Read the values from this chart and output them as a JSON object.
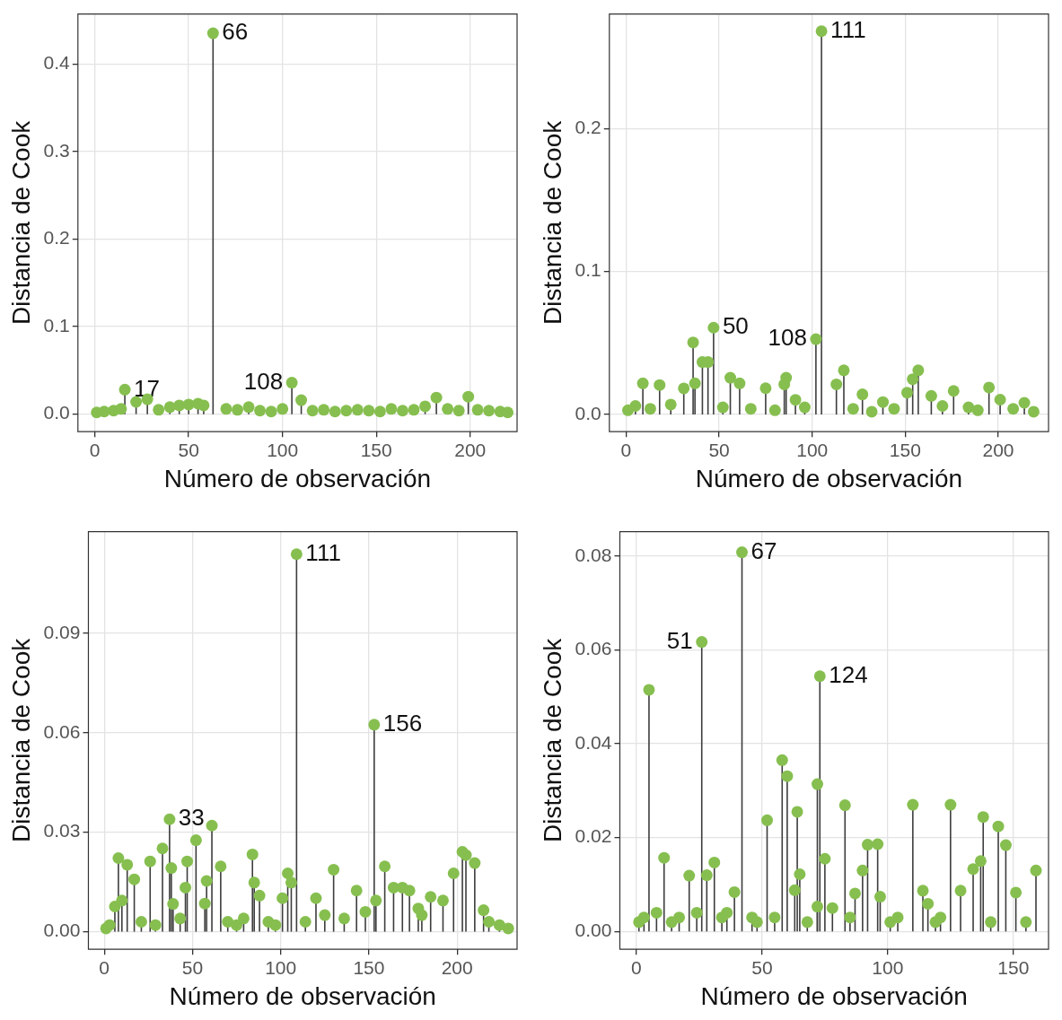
{
  "chart_data": [
    {
      "type": "lollipop",
      "xlabel": "Número de observación",
      "ylabel": "Distancia de Cook",
      "color": "#86bf4f",
      "grid": true,
      "marker": "circle",
      "xlim": [
        -9,
        225
      ],
      "ylim": [
        -0.02,
        0.457
      ],
      "xticks": [
        0,
        50,
        100,
        150,
        200
      ],
      "yticks": [
        {
          "value": 0,
          "label": "0.0"
        },
        {
          "value": 0.1,
          "label": "0.1"
        },
        {
          "value": 0.2,
          "label": "0.2"
        },
        {
          "value": 0.3,
          "label": "0.3"
        },
        {
          "value": 0.4,
          "label": "0.4"
        }
      ],
      "x": [
        63,
        16,
        22,
        28,
        105,
        110,
        182,
        199,
        1,
        5,
        10,
        14,
        34,
        40,
        45,
        50,
        55,
        58,
        70,
        76,
        82,
        88,
        94,
        100,
        116,
        122,
        128,
        134,
        140,
        146,
        152,
        158,
        164,
        170,
        176,
        188,
        194,
        204,
        210,
        216,
        220
      ],
      "values": [
        0.435,
        0.028,
        0.014,
        0.017,
        0.036,
        0.016,
        0.019,
        0.02,
        0.002,
        0.003,
        0.004,
        0.006,
        0.005,
        0.008,
        0.01,
        0.011,
        0.012,
        0.01,
        0.006,
        0.005,
        0.008,
        0.004,
        0.003,
        0.006,
        0.004,
        0.005,
        0.003,
        0.004,
        0.005,
        0.004,
        0.003,
        0.006,
        0.004,
        0.005,
        0.009,
        0.006,
        0.004,
        0.005,
        0.004,
        0.003,
        0.002
      ],
      "annotations": [
        {
          "text": "66",
          "x": 63,
          "y": 0.435
        },
        {
          "text": "17",
          "x": 16,
          "y": 0.028
        },
        {
          "text": "108",
          "x": 105,
          "y": 0.036
        }
      ]
    },
    {
      "type": "lollipop",
      "xlabel": "Número de observación",
      "ylabel": "Distancia de Cook",
      "color": "#86bf4f",
      "grid": true,
      "marker": "circle",
      "xlim": [
        -9,
        227
      ],
      "ylim": [
        -0.012,
        0.28
      ],
      "xticks": [
        0,
        50,
        100,
        150,
        200
      ],
      "yticks": [
        {
          "value": 0,
          "label": "0.0"
        },
        {
          "value": 0.1,
          "label": "0.1"
        },
        {
          "value": 0.2,
          "label": "0.2"
        }
      ],
      "x": [
        9,
        18,
        31,
        36,
        37,
        41,
        44,
        47,
        56,
        61,
        75,
        86,
        85,
        91,
        102,
        105,
        113,
        117,
        127,
        138,
        151,
        154,
        157,
        164,
        176,
        195,
        201,
        214,
        1,
        5,
        13,
        24,
        52,
        67,
        80,
        96,
        122,
        132,
        144,
        170,
        184,
        189,
        208,
        219
      ],
      "values": [
        0.0218,
        0.0206,
        0.0183,
        0.0504,
        0.0218,
        0.0367,
        0.0367,
        0.0607,
        0.0257,
        0.0218,
        0.0184,
        0.0257,
        0.0211,
        0.0103,
        0.0527,
        0.268,
        0.0211,
        0.0309,
        0.0141,
        0.0087,
        0.0153,
        0.0247,
        0.0309,
        0.013,
        0.0165,
        0.0189,
        0.0104,
        0.0082,
        0.003,
        0.006,
        0.004,
        0.007,
        0.005,
        0.004,
        0.003,
        0.005,
        0.004,
        0.002,
        0.004,
        0.006,
        0.005,
        0.003,
        0.004,
        0.002
      ],
      "annotations": [
        {
          "text": "111",
          "x": 105,
          "y": 0.268
        },
        {
          "text": "50",
          "x": 47,
          "y": 0.0607
        },
        {
          "text": "108",
          "x": 102,
          "y": 0.0527
        }
      ]
    },
    {
      "type": "lollipop",
      "xlabel": "Número de observación",
      "ylabel": "Distancia de Cook",
      "color": "#86bf4f",
      "grid": true,
      "marker": "circle",
      "xlim": [
        -9,
        234
      ],
      "ylim": [
        -0.0053,
        0.1206
      ],
      "xticks": [
        0,
        50,
        100,
        150,
        200
      ],
      "yticks": [
        {
          "value": 0,
          "label": "0.00"
        },
        {
          "value": 0.03,
          "label": "0.03"
        },
        {
          "value": 0.06,
          "label": "0.06"
        },
        {
          "value": 0.09,
          "label": "0.09"
        }
      ],
      "x": [
        8,
        13,
        17,
        6,
        10,
        26,
        33,
        37,
        38,
        39,
        47,
        46,
        52,
        58,
        61,
        66,
        57,
        84,
        85,
        88,
        104,
        101,
        106,
        109,
        120,
        130,
        143,
        153,
        154,
        159,
        164,
        169,
        173,
        185,
        192,
        198,
        203,
        205,
        210,
        215,
        1,
        3,
        21,
        29,
        43,
        70,
        75,
        79,
        93,
        97,
        114,
        125,
        136,
        148,
        178,
        180,
        218,
        224,
        229
      ],
      "values": [
        0.0222,
        0.0202,
        0.0158,
        0.0076,
        0.0094,
        0.0212,
        0.0251,
        0.0339,
        0.0192,
        0.0084,
        0.0212,
        0.0133,
        0.0276,
        0.0153,
        0.032,
        0.0197,
        0.0085,
        0.0233,
        0.0148,
        0.0109,
        0.0176,
        0.0101,
        0.0148,
        0.1138,
        0.0101,
        0.0187,
        0.0124,
        0.0624,
        0.0094,
        0.0197,
        0.0133,
        0.0133,
        0.0124,
        0.0105,
        0.0094,
        0.0176,
        0.0241,
        0.0231,
        0.0207,
        0.0065,
        0.001,
        0.002,
        0.003,
        0.002,
        0.004,
        0.003,
        0.002,
        0.004,
        0.003,
        0.002,
        0.003,
        0.005,
        0.004,
        0.006,
        0.007,
        0.005,
        0.003,
        0.002,
        0.001
      ],
      "annotations": [
        {
          "text": "111",
          "x": 109,
          "y": 0.1138
        },
        {
          "text": "156",
          "x": 153,
          "y": 0.0624
        },
        {
          "text": "33",
          "x": 37,
          "y": 0.0339
        }
      ]
    },
    {
      "type": "lollipop",
      "xlabel": "Número de observación",
      "ylabel": "Distancia de Cook",
      "color": "#86bf4f",
      "grid": true,
      "marker": "circle",
      "xlim": [
        -6.6,
        164
      ],
      "ylim": [
        -0.0038,
        0.0852
      ],
      "xticks": [
        0,
        50,
        100,
        150
      ],
      "yticks": [
        {
          "value": 0,
          "label": "0.00"
        },
        {
          "value": 0.02,
          "label": "0.02"
        },
        {
          "value": 0.04,
          "label": "0.04"
        },
        {
          "value": 0.06,
          "label": "0.06"
        },
        {
          "value": 0.08,
          "label": "0.08"
        }
      ],
      "x": [
        5,
        11,
        21,
        26,
        28,
        31,
        39,
        42,
        52,
        58,
        60,
        64,
        65,
        63,
        72,
        73,
        75,
        72,
        78,
        83,
        87,
        90,
        92,
        96,
        97,
        110,
        114,
        116,
        125,
        129,
        134,
        137,
        138,
        144,
        147,
        151,
        159,
        1,
        3,
        8,
        14,
        17,
        24,
        34,
        36,
        46,
        48,
        55,
        68,
        85,
        101,
        104,
        119,
        121,
        141,
        155
      ],
      "values": [
        0.0515,
        0.0157,
        0.0119,
        0.0617,
        0.012,
        0.0147,
        0.0084,
        0.0808,
        0.0237,
        0.0365,
        0.0331,
        0.0255,
        0.0122,
        0.0088,
        0.0314,
        0.0544,
        0.0155,
        0.0053,
        0.005,
        0.0269,
        0.0081,
        0.013,
        0.0185,
        0.0186,
        0.0074,
        0.027,
        0.0087,
        0.0059,
        0.027,
        0.0087,
        0.0133,
        0.015,
        0.0244,
        0.0224,
        0.0184,
        0.0083,
        0.013,
        0.002,
        0.003,
        0.004,
        0.002,
        0.003,
        0.004,
        0.003,
        0.004,
        0.003,
        0.002,
        0.003,
        0.002,
        0.003,
        0.002,
        0.003,
        0.002,
        0.003,
        0.002,
        0.002
      ],
      "annotations": [
        {
          "text": "67",
          "x": 42,
          "y": 0.0808
        },
        {
          "text": "51",
          "x": 26,
          "y": 0.0617
        },
        {
          "text": "124",
          "x": 73,
          "y": 0.0544
        }
      ]
    }
  ]
}
